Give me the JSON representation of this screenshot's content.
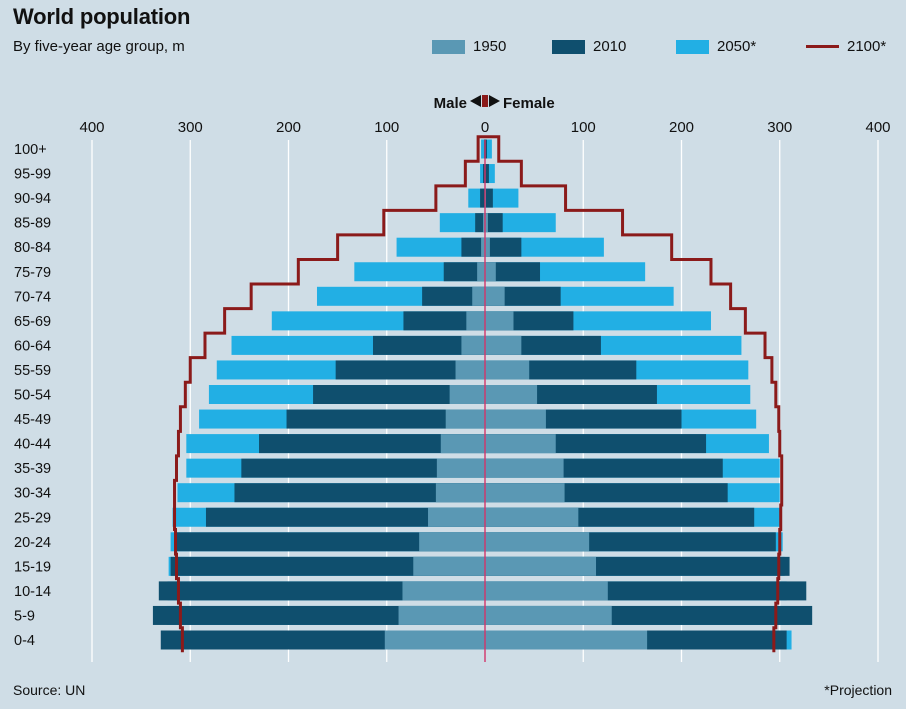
{
  "colors": {
    "background": "#cfdde6",
    "y1950": "#5a98b4",
    "y2010": "#0f4f6e",
    "y2050": "#22afe4",
    "y2100": "#8b1a1a",
    "grid": "#ffffff"
  },
  "texts": {
    "male": "Male",
    "female": "Female",
    "source": "Source: UN",
    "note": "*Projection"
  },
  "chart_data": {
    "type": "bar",
    "subtype": "population-pyramid",
    "title": "World population",
    "subtitle": "By five-year age group, m",
    "xlim": [
      -400,
      400
    ],
    "x_ticks": [
      -400,
      -300,
      -200,
      -100,
      0,
      100,
      200,
      300,
      400
    ],
    "x_tick_labels": [
      "400",
      "300",
      "200",
      "100",
      "0",
      "100",
      "200",
      "300",
      "400"
    ],
    "grid": true,
    "legend_position": "top-right",
    "categories": [
      "100+",
      "95-99",
      "90-94",
      "85-89",
      "80-84",
      "75-79",
      "70-74",
      "65-69",
      "60-64",
      "55-59",
      "50-54",
      "45-49",
      "40-44",
      "35-39",
      "30-34",
      "25-29",
      "20-24",
      "15-19",
      "10-14",
      "5-9",
      "0-4"
    ],
    "series": [
      {
        "name": "1950",
        "kind": "bar",
        "male": [
          0,
          0,
          0.5,
          2,
          4,
          8,
          13,
          19,
          24,
          30,
          36,
          40,
          45,
          49,
          50,
          58,
          67,
          73,
          84,
          88,
          102
        ],
        "female": [
          0,
          0,
          1,
          3,
          5,
          11,
          20,
          29,
          37,
          45,
          53,
          62,
          72,
          80,
          81,
          95,
          106,
          113,
          125,
          129,
          165
        ]
      },
      {
        "name": "2010",
        "kind": "bar",
        "male": [
          1,
          2,
          5,
          10,
          24,
          42,
          64,
          83,
          114,
          152,
          175,
          202,
          230,
          248,
          255,
          284,
          314,
          320,
          332,
          338,
          330
        ],
        "female": [
          2,
          4,
          8,
          18,
          37,
          56,
          77,
          90,
          118,
          154,
          175,
          200,
          225,
          242,
          247,
          274,
          296,
          310,
          327,
          333,
          307
        ]
      },
      {
        "name": "2050*",
        "kind": "bar",
        "male": [
          4,
          5,
          17,
          46,
          90,
          133,
          171,
          217,
          258,
          273,
          281,
          291,
          304,
          304,
          313,
          318,
          320,
          322,
          323,
          324,
          325
        ],
        "female": [
          7,
          10,
          34,
          72,
          121,
          163,
          192,
          230,
          261,
          268,
          270,
          276,
          289,
          300,
          300,
          302,
          303,
          305,
          307,
          310,
          312
        ]
      },
      {
        "name": "2100*",
        "kind": "line",
        "male": [
          7,
          20,
          50,
          103,
          150,
          190,
          238,
          265,
          285,
          300,
          305,
          310,
          312,
          314,
          316,
          316,
          315,
          314,
          312,
          310,
          308
        ],
        "female": [
          14,
          37,
          82,
          140,
          190,
          230,
          250,
          265,
          285,
          292,
          296,
          299,
          300,
          302,
          302,
          301,
          300,
          299,
          298,
          296,
          294
        ]
      }
    ]
  }
}
